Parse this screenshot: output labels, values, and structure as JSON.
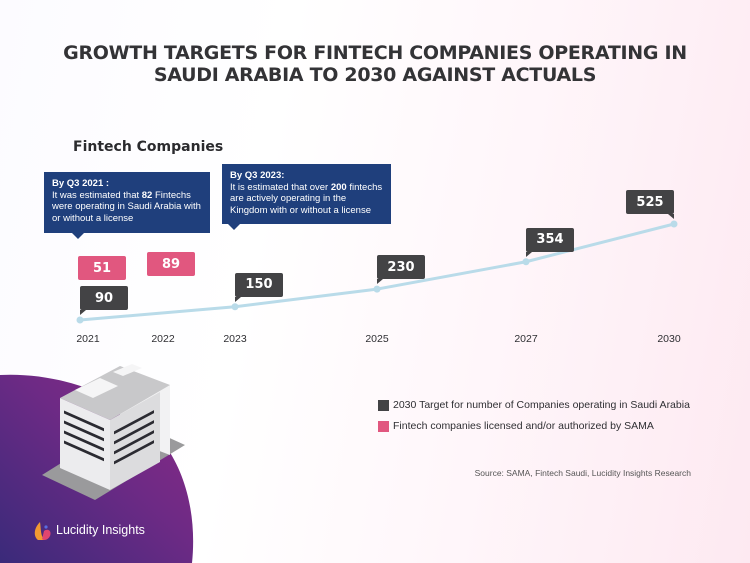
{
  "title_line1": "GROWTH TARGETS FOR FINTECH COMPANIES OPERATING IN",
  "title_line2": "SAUDI ARABIA TO 2030 AGAINST ACTUALS",
  "subtitle": "Fintech Companies",
  "callouts": [
    {
      "heading": "By Q3 2021 :",
      "pre": "It was estimated that ",
      "bold": "82",
      "post": " Fintechs were operating in Saudi Arabia with or without a license"
    },
    {
      "heading": "By Q3 2023:",
      "pre": "It is estimated that over ",
      "bold": "200",
      "post": " fintechs are actively operating in the Kingdom with or without a license"
    }
  ],
  "colors": {
    "target": "#434345",
    "licensed": "#e1577f",
    "line": "#b9dbe9",
    "callout": "#1f3f7c"
  },
  "chart_data": {
    "type": "line",
    "title": "Growth Targets for Fintech Companies Operating in Saudi Arabia to 2030 Against Actuals",
    "subtitle": "Fintech Companies",
    "x": [
      "2021",
      "2022",
      "2023",
      "2025",
      "2027",
      "2030"
    ],
    "series": [
      {
        "name": "2030 Target for number of Companies operating in Saudi Arabia",
        "type": "line",
        "x": [
          "2021",
          "2023",
          "2025",
          "2027",
          "2030"
        ],
        "values": [
          90,
          150,
          230,
          354,
          525
        ]
      },
      {
        "name": "Fintech companies licensed and/or authorized by SAMA",
        "type": "label",
        "x": [
          "2021",
          "2022"
        ],
        "values": [
          51,
          89
        ]
      }
    ],
    "ylim": [
      0,
      550
    ],
    "grid": false,
    "legend_position": "bottom-right"
  },
  "legend": [
    {
      "label": "2030 Target for number of Companies operating in Saudi Arabia"
    },
    {
      "label": "Fintech companies licensed and/or authorized by SAMA"
    }
  ],
  "source": "Source: SAMA, Fintech Saudi, Lucidity Insights Research",
  "brand": "Lucidity Insights"
}
